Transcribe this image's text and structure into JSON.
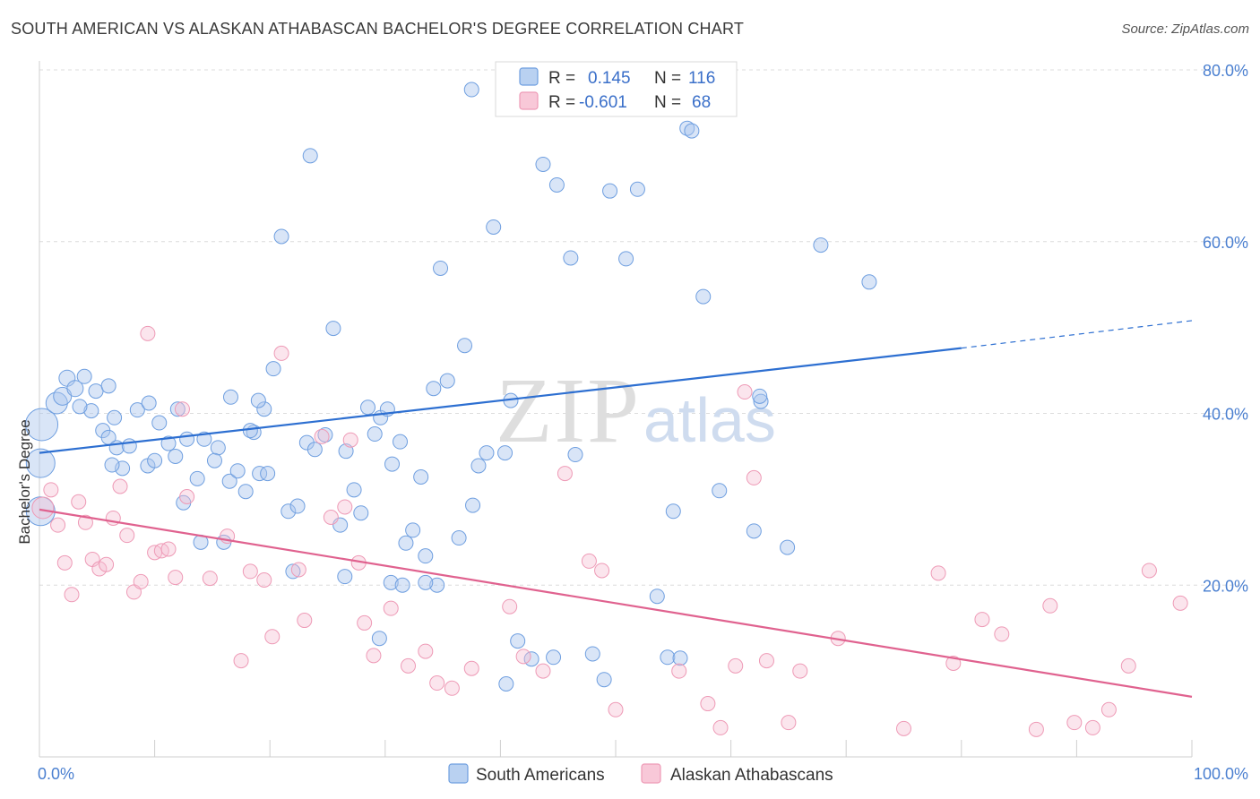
{
  "header": {
    "title": "SOUTH AMERICAN VS ALASKAN ATHABASCAN BACHELOR'S DEGREE CORRELATION CHART",
    "source": "Source: ZipAtlas.com"
  },
  "watermark": {
    "zip": "ZIP",
    "atlas": "atlas"
  },
  "legend": {
    "rows": [
      {
        "r_label": "R =",
        "r_value": "0.145",
        "n_label": "N =",
        "n_value": "116"
      },
      {
        "r_label": "R =",
        "r_value": "-0.601",
        "n_label": "N =",
        "n_value": "68"
      }
    ]
  },
  "chart_data": {
    "type": "scatter",
    "title": "SOUTH AMERICAN VS ALASKAN ATHABASCAN BACHELOR'S DEGREE CORRELATION CHART",
    "xlabel": "",
    "ylabel": "Bachelor's Degree",
    "xlim": [
      0,
      100
    ],
    "ylim": [
      0,
      80
    ],
    "x_tick_labels": [
      "0.0%",
      "100.0%"
    ],
    "y_ticks": [
      20,
      40,
      60,
      80
    ],
    "y_tick_labels": [
      "20.0%",
      "40.0%",
      "60.0%",
      "80.0%"
    ],
    "colors": {
      "blue": "#6f9fe0",
      "blue_line": "#2d6fd1",
      "pink": "#ee9ab6",
      "pink_line": "#e0628f"
    },
    "series": [
      {
        "name": "South Americans",
        "trend": {
          "x0": 0,
          "y0": 35.4,
          "x1": 80,
          "y1": 47.6,
          "dash_to_x": 100,
          "dash_to_y": 50.8
        },
        "points": [
          [
            0.2,
            38.7,
            18
          ],
          [
            0.1,
            34.2,
            16
          ],
          [
            0.1,
            28.6,
            16
          ],
          [
            1.5,
            41.2,
            12
          ],
          [
            2.0,
            42.0,
            10
          ],
          [
            2.4,
            44.1,
            9
          ],
          [
            3.1,
            42.9,
            9
          ],
          [
            3.9,
            44.3,
            8
          ],
          [
            4.5,
            40.3,
            8
          ],
          [
            4.9,
            42.6,
            8
          ],
          [
            3.5,
            40.8,
            8
          ],
          [
            5.5,
            38.0,
            8
          ],
          [
            6.0,
            37.2,
            8
          ],
          [
            6.7,
            36.0,
            8
          ],
          [
            7.2,
            33.6,
            8
          ],
          [
            6.3,
            34.0,
            8
          ],
          [
            7.8,
            36.2,
            8
          ],
          [
            8.5,
            40.4,
            8
          ],
          [
            9.4,
            33.9,
            8
          ],
          [
            10.0,
            34.5,
            8
          ],
          [
            10.4,
            38.9,
            8
          ],
          [
            11.2,
            36.5,
            8
          ],
          [
            11.8,
            35.0,
            8
          ],
          [
            12.5,
            29.6,
            8
          ],
          [
            13.7,
            32.4,
            8
          ],
          [
            14.3,
            37.0,
            8
          ],
          [
            15.5,
            36.0,
            8
          ],
          [
            15.2,
            34.5,
            8
          ],
          [
            12.8,
            37.0,
            8
          ],
          [
            14.0,
            25.0,
            8
          ],
          [
            16.0,
            25.0,
            8
          ],
          [
            16.5,
            32.1,
            8
          ],
          [
            17.2,
            33.3,
            8
          ],
          [
            17.9,
            30.9,
            8
          ],
          [
            18.6,
            37.8,
            8
          ],
          [
            19.1,
            33.0,
            8
          ],
          [
            19.8,
            33.0,
            8
          ],
          [
            20.3,
            45.2,
            8
          ],
          [
            21.0,
            60.6,
            8
          ],
          [
            21.6,
            28.6,
            8
          ],
          [
            22.4,
            29.2,
            8
          ],
          [
            23.2,
            36.6,
            8
          ],
          [
            23.9,
            35.8,
            8
          ],
          [
            24.8,
            37.5,
            8
          ],
          [
            25.5,
            49.9,
            8
          ],
          [
            26.1,
            27.0,
            8
          ],
          [
            26.6,
            35.6,
            8
          ],
          [
            27.3,
            31.1,
            8
          ],
          [
            27.9,
            28.4,
            8
          ],
          [
            28.5,
            40.7,
            8
          ],
          [
            29.1,
            37.6,
            8
          ],
          [
            29.6,
            39.5,
            8
          ],
          [
            30.2,
            40.5,
            8
          ],
          [
            30.6,
            34.1,
            8
          ],
          [
            31.3,
            36.7,
            8
          ],
          [
            31.8,
            24.9,
            8
          ],
          [
            32.4,
            26.4,
            8
          ],
          [
            33.1,
            32.6,
            8
          ],
          [
            33.5,
            23.4,
            8
          ],
          [
            34.2,
            42.9,
            8
          ],
          [
            34.8,
            56.9,
            8
          ],
          [
            35.4,
            43.8,
            8
          ],
          [
            36.4,
            25.5,
            8
          ],
          [
            36.9,
            47.9,
            8
          ],
          [
            37.6,
            29.3,
            8
          ],
          [
            38.1,
            33.9,
            8
          ],
          [
            38.8,
            35.4,
            8
          ],
          [
            39.4,
            61.7,
            8
          ],
          [
            40.4,
            35.4,
            8
          ],
          [
            40.9,
            41.5,
            8
          ],
          [
            41.5,
            13.5,
            8
          ],
          [
            42.7,
            11.4,
            8
          ],
          [
            43.7,
            69.0,
            8
          ],
          [
            44.9,
            66.6,
            8
          ],
          [
            46.1,
            58.1,
            8
          ],
          [
            46.5,
            35.2,
            8
          ],
          [
            49.0,
            9.0,
            8
          ],
          [
            49.5,
            65.9,
            8
          ],
          [
            50.9,
            58.0,
            8
          ],
          [
            51.9,
            66.1,
            8
          ],
          [
            53.6,
            18.7,
            8
          ],
          [
            54.5,
            11.6,
            8
          ],
          [
            55.0,
            28.6,
            8
          ],
          [
            56.2,
            73.2,
            8
          ],
          [
            56.6,
            72.9,
            8
          ],
          [
            57.6,
            53.6,
            8
          ],
          [
            59.0,
            31.0,
            8
          ],
          [
            62.0,
            26.3,
            8
          ],
          [
            62.6,
            41.4,
            8
          ],
          [
            64.9,
            24.4,
            8
          ],
          [
            67.8,
            59.6,
            8
          ],
          [
            29.5,
            13.8,
            8
          ],
          [
            37.5,
            77.7,
            8
          ],
          [
            55.6,
            11.5,
            8
          ],
          [
            34.5,
            20.0,
            8
          ],
          [
            30.5,
            20.3,
            8
          ],
          [
            26.5,
            21.0,
            8
          ],
          [
            22.0,
            21.6,
            8
          ],
          [
            72.0,
            55.3,
            8
          ],
          [
            62.5,
            42.0,
            8
          ],
          [
            9.5,
            41.2,
            8
          ],
          [
            6.5,
            39.5,
            8
          ],
          [
            12.0,
            40.5,
            8
          ],
          [
            19.5,
            40.5,
            8
          ],
          [
            19.0,
            41.5,
            8
          ],
          [
            23.5,
            70.0,
            8
          ],
          [
            31.5,
            20.0,
            8
          ],
          [
            33.5,
            20.3,
            8
          ],
          [
            40.5,
            8.5,
            8
          ],
          [
            44.6,
            11.6,
            8
          ],
          [
            48.0,
            12.0,
            8
          ],
          [
            18.3,
            38.0,
            8
          ],
          [
            16.6,
            41.9,
            8
          ],
          [
            6.0,
            43.2,
            8
          ]
        ]
      },
      {
        "name": "Alaskan Athabascans",
        "trend": {
          "x0": 0,
          "y0": 28.8,
          "x1": 100,
          "y1": 7.0
        },
        "points": [
          [
            0.3,
            29.0,
            12
          ],
          [
            1.0,
            31.1,
            8
          ],
          [
            1.6,
            27.0,
            8
          ],
          [
            2.2,
            22.6,
            8
          ],
          [
            2.8,
            18.9,
            8
          ],
          [
            3.4,
            29.7,
            8
          ],
          [
            4.0,
            27.3,
            8
          ],
          [
            4.6,
            23.0,
            8
          ],
          [
            5.2,
            21.9,
            8
          ],
          [
            5.8,
            22.4,
            8
          ],
          [
            6.4,
            27.8,
            8
          ],
          [
            7.0,
            31.5,
            8
          ],
          [
            7.6,
            25.8,
            8
          ],
          [
            8.2,
            19.2,
            8
          ],
          [
            8.8,
            20.4,
            8
          ],
          [
            9.4,
            49.3,
            8
          ],
          [
            10.0,
            23.8,
            8
          ],
          [
            10.6,
            24.0,
            8
          ],
          [
            11.2,
            24.2,
            8
          ],
          [
            11.8,
            20.9,
            8
          ],
          [
            12.4,
            40.5,
            8
          ],
          [
            12.8,
            30.3,
            8
          ],
          [
            14.8,
            20.8,
            8
          ],
          [
            16.3,
            25.7,
            8
          ],
          [
            17.5,
            11.2,
            8
          ],
          [
            18.3,
            21.6,
            8
          ],
          [
            19.5,
            20.6,
            8
          ],
          [
            20.2,
            14.0,
            8
          ],
          [
            21.0,
            47.0,
            8
          ],
          [
            22.5,
            21.8,
            8
          ],
          [
            23.0,
            15.9,
            8
          ],
          [
            24.5,
            37.3,
            8
          ],
          [
            25.3,
            27.9,
            8
          ],
          [
            26.5,
            29.1,
            8
          ],
          [
            27.0,
            36.9,
            8
          ],
          [
            27.7,
            22.6,
            8
          ],
          [
            28.2,
            15.6,
            8
          ],
          [
            29.0,
            11.8,
            8
          ],
          [
            30.5,
            17.3,
            8
          ],
          [
            32.0,
            10.6,
            8
          ],
          [
            33.5,
            12.3,
            8
          ],
          [
            34.5,
            8.6,
            8
          ],
          [
            35.8,
            8.0,
            8
          ],
          [
            37.5,
            10.3,
            8
          ],
          [
            40.8,
            17.5,
            8
          ],
          [
            42.0,
            11.7,
            8
          ],
          [
            43.7,
            10.0,
            8
          ],
          [
            45.6,
            33.0,
            8
          ],
          [
            47.7,
            22.8,
            8
          ],
          [
            48.8,
            21.7,
            8
          ],
          [
            50.0,
            5.5,
            8
          ],
          [
            55.5,
            10.0,
            8
          ],
          [
            58.0,
            6.2,
            8
          ],
          [
            59.1,
            3.4,
            8
          ],
          [
            60.4,
            10.6,
            8
          ],
          [
            61.2,
            42.5,
            8
          ],
          [
            62.0,
            32.5,
            8
          ],
          [
            63.1,
            11.2,
            8
          ],
          [
            65.0,
            4.0,
            8
          ],
          [
            69.3,
            13.8,
            8
          ],
          [
            78.0,
            21.4,
            8
          ],
          [
            79.3,
            10.9,
            8
          ],
          [
            81.8,
            16.0,
            8
          ],
          [
            83.5,
            14.3,
            8
          ],
          [
            87.7,
            17.6,
            8
          ],
          [
            89.8,
            4.0,
            8
          ],
          [
            91.4,
            3.4,
            8
          ],
          [
            94.5,
            10.6,
            8
          ],
          [
            96.3,
            21.7,
            8
          ],
          [
            99.0,
            17.9,
            8
          ],
          [
            86.5,
            3.2,
            8
          ],
          [
            92.8,
            5.5,
            8
          ],
          [
            75.0,
            3.3,
            8
          ],
          [
            66.0,
            10.0,
            8
          ]
        ]
      }
    ],
    "bottom_legend": [
      "South Americans",
      "Alaskan Athabascans"
    ]
  }
}
